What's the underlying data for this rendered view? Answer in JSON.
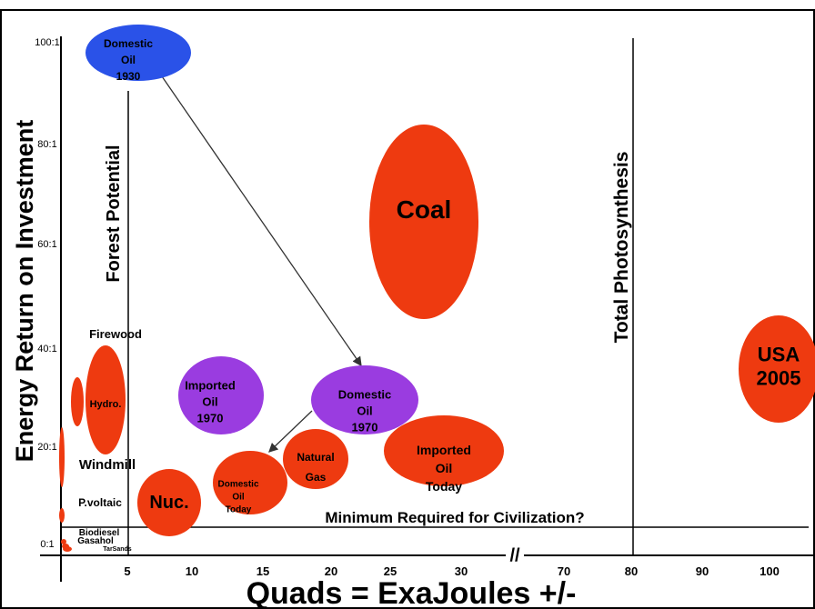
{
  "chart_data": {
    "type": "scatter",
    "title": "",
    "xlabel": "Quads = ExaJoules +/-",
    "ylabel": "Energy Return on Investment",
    "xticks": [
      "5",
      "10",
      "15",
      "20",
      "25",
      "30",
      "70",
      "80",
      "90",
      "100"
    ],
    "yticks": [
      "100:1",
      "80:1",
      "60:1",
      "40:1",
      "20:1",
      "0:1"
    ],
    "x_axis_break": "//",
    "reference_lines": {
      "forest": "Forest Potential",
      "photosynthesis": "Total Photosynthesis",
      "minimum": "Minimum Required for Civilization?"
    },
    "points": [
      {
        "name": "Domestic Oil 1930",
        "lines": [
          "Domestic",
          "Oil",
          "1930"
        ],
        "x": 5,
        "y": 100,
        "color": "#2a52e8"
      },
      {
        "name": "Coal",
        "lines": [
          "Coal"
        ],
        "x": 27,
        "y": 67,
        "color": "#ee3a10"
      },
      {
        "name": "USA 2005",
        "lines": [
          "USA",
          "2005"
        ],
        "x": 102,
        "y": 37,
        "color": "#ee3a10"
      },
      {
        "name": "Imported Oil 1970",
        "lines": [
          "Imported",
          "Oil",
          "1970"
        ],
        "x": 12,
        "y": 30,
        "color": "#9a3ce0"
      },
      {
        "name": "Domestic Oil 1970",
        "lines": [
          "Domestic",
          "Oil",
          "1970"
        ],
        "x": 23,
        "y": 30,
        "color": "#9a3ce0"
      },
      {
        "name": "Imported Oil Today",
        "lines": [
          "Imported",
          "Oil",
          "Today"
        ],
        "x": 26,
        "y": 19,
        "color": "#ee3a10"
      },
      {
        "name": "Natural Gas",
        "lines": [
          "Natural",
          "Gas"
        ],
        "x": 18,
        "y": 18,
        "color": "#ee3a10"
      },
      {
        "name": "Domestic Oil Today",
        "lines": [
          "Domestic",
          "Oil",
          "Today"
        ],
        "x": 14,
        "y": 14,
        "color": "#ee3a10"
      },
      {
        "name": "Nuc.",
        "lines": [
          "Nuc."
        ],
        "x": 8,
        "y": 10,
        "color": "#ee3a10"
      },
      {
        "name": "Hydro.",
        "lines": [
          "Hydro."
        ],
        "x": 3,
        "y": 35,
        "color": "#ee3a10"
      },
      {
        "name": "Firewood",
        "lines": [
          "Firewood"
        ],
        "x": 1,
        "y": 37,
        "color": "#ee3a10"
      },
      {
        "name": "Windmill",
        "lines": [
          "Windmill"
        ],
        "x": 0,
        "y": 18,
        "color": "#ee3a10"
      },
      {
        "name": "P.voltaic",
        "lines": [
          "P.voltaic"
        ],
        "x": 0,
        "y": 7,
        "color": "#ee3a10"
      },
      {
        "name": "Biodiesel",
        "lines": [
          "Biodiesel"
        ],
        "x": 0,
        "y": 3,
        "color": "#ee3a10"
      },
      {
        "name": "Gasahol",
        "lines": [
          "Gasahol"
        ],
        "x": 0,
        "y": 1,
        "color": "#ee3a10"
      },
      {
        "name": "TarSands",
        "lines": [
          "TarSands"
        ],
        "x": 0,
        "y": 0,
        "color": "#ee3a10"
      }
    ],
    "arrows": [
      {
        "from": "Domestic Oil 1930",
        "to": "Domestic Oil 1970"
      },
      {
        "from": "Domestic Oil 1970",
        "to": "Domestic Oil Today"
      }
    ]
  }
}
